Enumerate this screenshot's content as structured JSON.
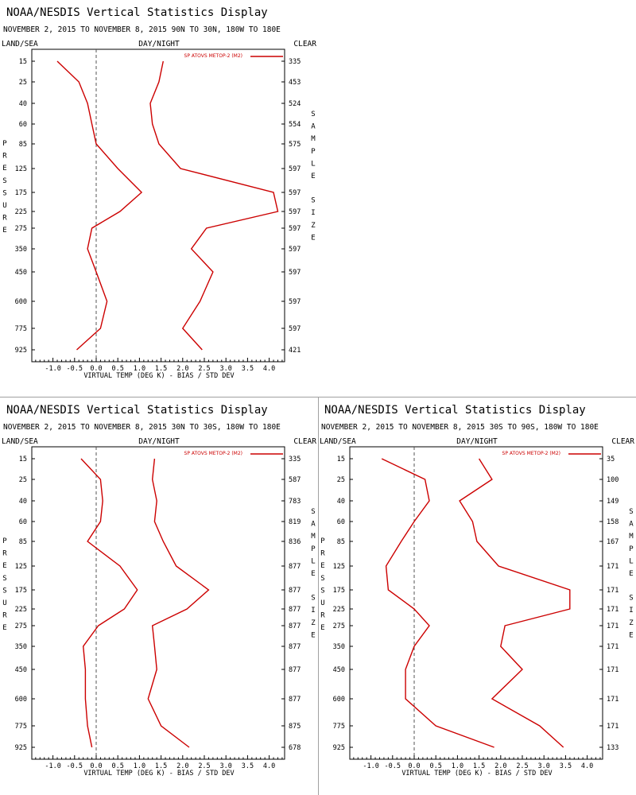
{
  "colors": {
    "series": "#cc0000",
    "axis": "#000000",
    "zero_line": "#555555",
    "divider": "#a0a0a0"
  },
  "chart_data": [
    {
      "type": "line",
      "title": "NOAA/NESDIS Vertical Statistics Display",
      "subtitle": "NOVEMBER 2, 2015 TO NOVEMBER 8, 2015  90N TO 30N, 180W TO 180E",
      "left_header": "LAND/SEA",
      "center_header": "DAY/NIGHT",
      "right_header": "CLEAR",
      "xlabel": "VIRTUAL TEMP (DEG K) - BIAS / STD DEV",
      "ylabel": "PRESSURE",
      "right_label": "SAMPLE SIZE",
      "legend": "SP ATOVS METOP-2 (M2)",
      "xlim": [
        -1.5,
        4.5
      ],
      "xticks": [
        "-1.0",
        "-0.5",
        "0.0",
        "0.5",
        "1.0",
        "1.5",
        "2.0",
        "2.5",
        "3.0",
        "3.5",
        "4.0"
      ],
      "pressure_levels": [
        "15",
        "25",
        "40",
        "60",
        "85",
        "125",
        "175",
        "225",
        "275",
        "350",
        "450",
        "600",
        "775",
        "925"
      ],
      "sample_size": [
        "335",
        "453",
        "524",
        "554",
        "575",
        "597",
        "597",
        "597",
        "597",
        "597",
        "597",
        "597",
        "597",
        "421"
      ],
      "series": [
        {
          "name": "BIAS",
          "values": [
            -0.9,
            -0.4,
            -0.2,
            -0.1,
            0.0,
            0.5,
            1.05,
            0.55,
            -0.1,
            -0.2,
            0.0,
            0.25,
            0.1,
            -0.45
          ]
        },
        {
          "name": "STD DEV",
          "values": [
            1.55,
            1.45,
            1.25,
            1.3,
            1.45,
            1.95,
            4.1,
            4.2,
            2.55,
            2.2,
            2.7,
            2.4,
            2.0,
            2.45
          ]
        }
      ]
    },
    {
      "type": "line",
      "title": "NOAA/NESDIS Vertical Statistics Display",
      "subtitle": "NOVEMBER 2, 2015 TO NOVEMBER 8, 2015  30N TO 30S, 180W TO 180E",
      "left_header": "LAND/SEA",
      "center_header": "DAY/NIGHT",
      "right_header": "CLEAR",
      "xlabel": "VIRTUAL TEMP (DEG K) - BIAS / STD DEV",
      "ylabel": "PRESSURE",
      "right_label": "SAMPLE SIZE",
      "legend": "SP ATOVS METOP-2 (M2)",
      "xlim": [
        -1.5,
        4.5
      ],
      "xticks": [
        "-1.0",
        "-0.5",
        "0.0",
        "0.5",
        "1.0",
        "1.5",
        "2.0",
        "2.5",
        "3.0",
        "3.5",
        "4.0"
      ],
      "pressure_levels": [
        "15",
        "25",
        "40",
        "60",
        "85",
        "125",
        "175",
        "225",
        "275",
        "350",
        "450",
        "600",
        "775",
        "925"
      ],
      "sample_size": [
        "335",
        "587",
        "783",
        "819",
        "836",
        "877",
        "877",
        "877",
        "877",
        "877",
        "877",
        "877",
        "875",
        "678"
      ],
      "series": [
        {
          "name": "BIAS",
          "values": [
            -0.35,
            0.1,
            0.15,
            0.1,
            -0.2,
            0.55,
            0.95,
            0.65,
            0.05,
            -0.3,
            -0.25,
            -0.25,
            -0.2,
            -0.1
          ]
        },
        {
          "name": "STD DEV",
          "values": [
            1.35,
            1.3,
            1.4,
            1.35,
            1.55,
            1.85,
            2.6,
            2.1,
            1.3,
            1.35,
            1.4,
            1.2,
            1.5,
            2.15
          ]
        }
      ]
    },
    {
      "type": "line",
      "title": "NOAA/NESDIS Vertical Statistics Display",
      "subtitle": "NOVEMBER 2, 2015 TO NOVEMBER 8, 2015  30S TO 90S, 180W TO 180E",
      "left_header": "LAND/SEA",
      "center_header": "DAY/NIGHT",
      "right_header": "CLEAR",
      "xlabel": "VIRTUAL TEMP (DEG K) - BIAS / STD DEV",
      "ylabel": "PRESSURE",
      "right_label": "SAMPLE SIZE",
      "legend": "SP ATOVS METOP-2 (M2)",
      "xlim": [
        -1.5,
        4.5
      ],
      "xticks": [
        "-1.0",
        "-0.5",
        "0.0",
        "0.5",
        "1.0",
        "1.5",
        "2.0",
        "2.5",
        "3.0",
        "3.5",
        "4.0"
      ],
      "pressure_levels": [
        "15",
        "25",
        "40",
        "60",
        "85",
        "125",
        "175",
        "225",
        "275",
        "350",
        "450",
        "600",
        "775",
        "925"
      ],
      "sample_size": [
        "35",
        "100",
        "149",
        "158",
        "167",
        "171",
        "171",
        "171",
        "171",
        "171",
        "171",
        "171",
        "171",
        "133"
      ],
      "series": [
        {
          "name": "BIAS",
          "values": [
            -0.75,
            0.25,
            0.35,
            0.0,
            -0.3,
            -0.65,
            -0.6,
            0.0,
            0.35,
            0.0,
            -0.2,
            -0.2,
            0.5,
            1.85
          ]
        },
        {
          "name": "STD DEV",
          "values": [
            1.5,
            1.8,
            1.05,
            1.35,
            1.45,
            1.95,
            3.6,
            3.6,
            2.1,
            2.0,
            2.5,
            1.8,
            2.9,
            3.45
          ]
        }
      ]
    }
  ]
}
